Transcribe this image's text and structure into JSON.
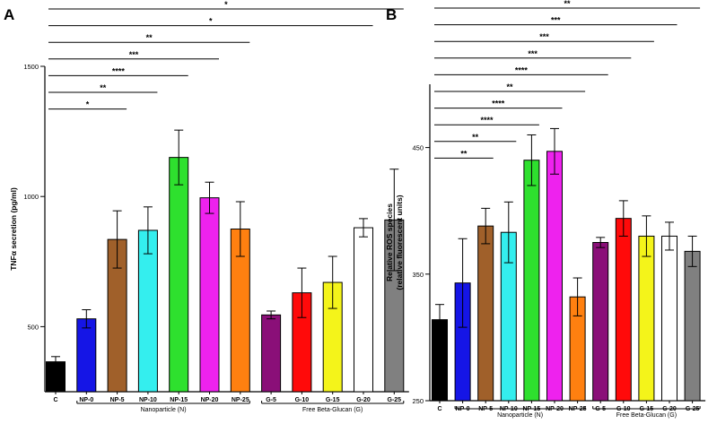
{
  "chart_data": [
    {
      "panel": "A",
      "type": "bar",
      "ylabel": "TNFα secretion (pg/ml)",
      "ylim": [
        250,
        1500
      ],
      "yticks": [
        500,
        1000,
        1500
      ],
      "categories": [
        "C",
        "NP-0",
        "NP-5",
        "NP-10",
        "NP-15",
        "NP-20",
        "NP-25",
        "G-5",
        "G-10",
        "G-15",
        "G-20",
        "G-25"
      ],
      "values": [
        365,
        530,
        835,
        870,
        1150,
        995,
        875,
        545,
        630,
        670,
        880,
        910
      ],
      "errors": [
        20,
        35,
        110,
        90,
        105,
        60,
        105,
        15,
        95,
        100,
        35,
        195
      ],
      "colors": [
        "#000000",
        "#1515e6",
        "#a0602a",
        "#34eeee",
        "#2ee02e",
        "#ee22ee",
        "#ff8010",
        "#8a0f78",
        "#ff0a0a",
        "#f4f41a",
        "#ffffff",
        "#808080"
      ],
      "groups": [
        {
          "label": "Nanoparticle (N)",
          "from": "NP-0",
          "to": "NP-25"
        },
        {
          "label": "Free Beta-Glucan (G)",
          "from": "G-5",
          "to": "G-25"
        }
      ],
      "significance": [
        {
          "from": "C",
          "to": "NP-5",
          "label": "*"
        },
        {
          "from": "C",
          "to": "NP-10",
          "label": "**"
        },
        {
          "from": "C",
          "to": "NP-15",
          "label": "****"
        },
        {
          "from": "C",
          "to": "NP-20",
          "label": "***"
        },
        {
          "from": "C",
          "to": "NP-25",
          "label": "**"
        },
        {
          "from": "C",
          "to": "G-20",
          "label": "*"
        },
        {
          "from": "C",
          "to": "G-25",
          "label": "*"
        }
      ]
    },
    {
      "panel": "B",
      "type": "bar",
      "ylabel": "Relative ROS species",
      "ylabel2": "(relative fluorescent units)",
      "ylim": [
        250,
        500
      ],
      "yticks": [
        250,
        350,
        450
      ],
      "categories": [
        "C",
        "NP-0",
        "NP-5",
        "NP-10",
        "NP-15",
        "NP-20",
        "NP-25",
        "G-5",
        "G-10",
        "G-15",
        "G-20",
        "G-25"
      ],
      "values": [
        314,
        343,
        388,
        383,
        440,
        447,
        332,
        375,
        394,
        380,
        380,
        368
      ],
      "errors": [
        12,
        35,
        14,
        24,
        20,
        18,
        15,
        4,
        14,
        16,
        11,
        12
      ],
      "colors": [
        "#000000",
        "#1515e6",
        "#a0602a",
        "#34eeee",
        "#2ee02e",
        "#ee22ee",
        "#ff8010",
        "#8a0f78",
        "#ff0a0a",
        "#f4f41a",
        "#ffffff",
        "#808080"
      ],
      "groups": [
        {
          "label": "Nanoparticle (N)",
          "from": "NP-0",
          "to": "NP-25"
        },
        {
          "label": "Free Beta-Glucan (G)",
          "from": "G-5",
          "to": "G-25"
        }
      ],
      "significance": [
        {
          "from": "C",
          "to": "NP-5",
          "label": "**"
        },
        {
          "from": "C",
          "to": "NP-10",
          "label": "**"
        },
        {
          "from": "C",
          "to": "NP-15",
          "label": "****"
        },
        {
          "from": "C",
          "to": "NP-20",
          "label": "****"
        },
        {
          "from": "C",
          "to": "NP-25",
          "label": "**"
        },
        {
          "from": "C",
          "to": "G-5",
          "label": "****"
        },
        {
          "from": "C",
          "to": "G-10",
          "label": "***"
        },
        {
          "from": "C",
          "to": "G-15",
          "label": "***"
        },
        {
          "from": "C",
          "to": "G-20",
          "label": "***"
        },
        {
          "from": "C",
          "to": "G-25",
          "label": "**"
        }
      ]
    }
  ]
}
